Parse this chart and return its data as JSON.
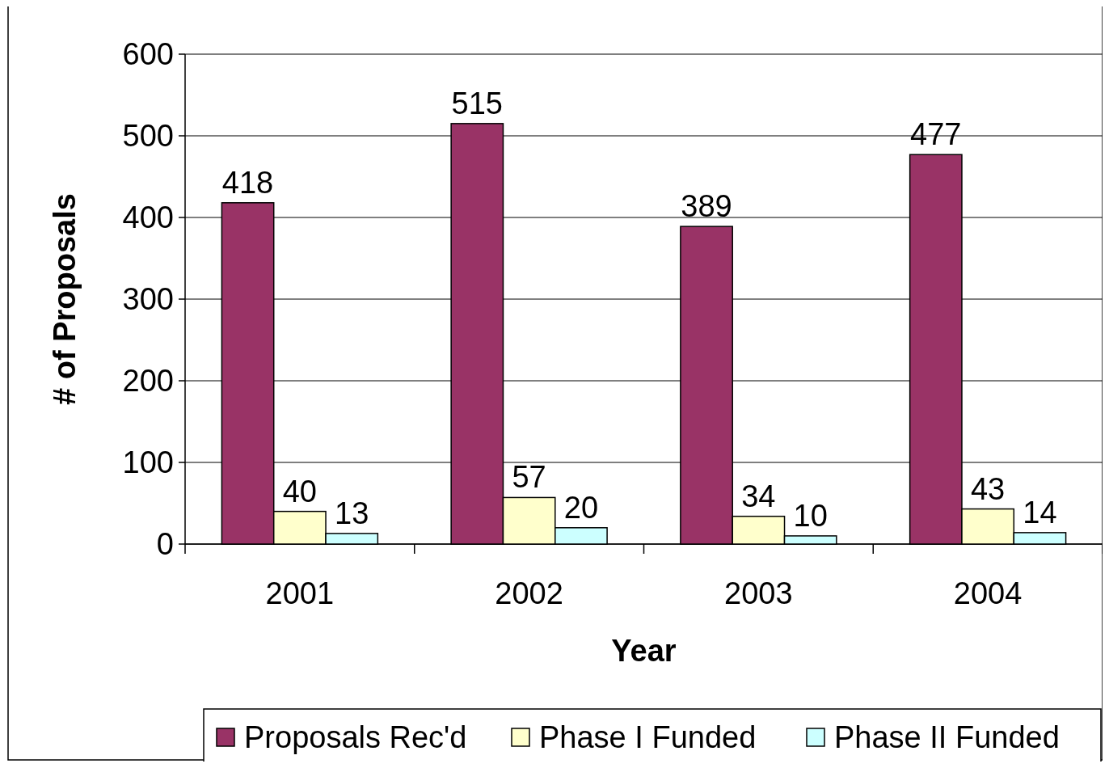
{
  "chart_data": {
    "type": "bar",
    "xlabel": "Year",
    "ylabel": "# of Proposals",
    "categories": [
      "2001",
      "2002",
      "2003",
      "2004"
    ],
    "series": [
      {
        "name": "Proposals Rec'd",
        "color": "#993366",
        "values": [
          418,
          515,
          389,
          477
        ]
      },
      {
        "name": "Phase I Funded",
        "color": "#ffffcc",
        "values": [
          40,
          57,
          34,
          43
        ]
      },
      {
        "name": "Phase II Funded",
        "color": "#ccffff",
        "values": [
          13,
          20,
          10,
          14
        ]
      }
    ],
    "ylim": [
      0,
      600
    ],
    "yticks": [
      0,
      100,
      200,
      300,
      400,
      500,
      600
    ],
    "grid": "y",
    "legend": "bottom",
    "data_labels": true
  }
}
